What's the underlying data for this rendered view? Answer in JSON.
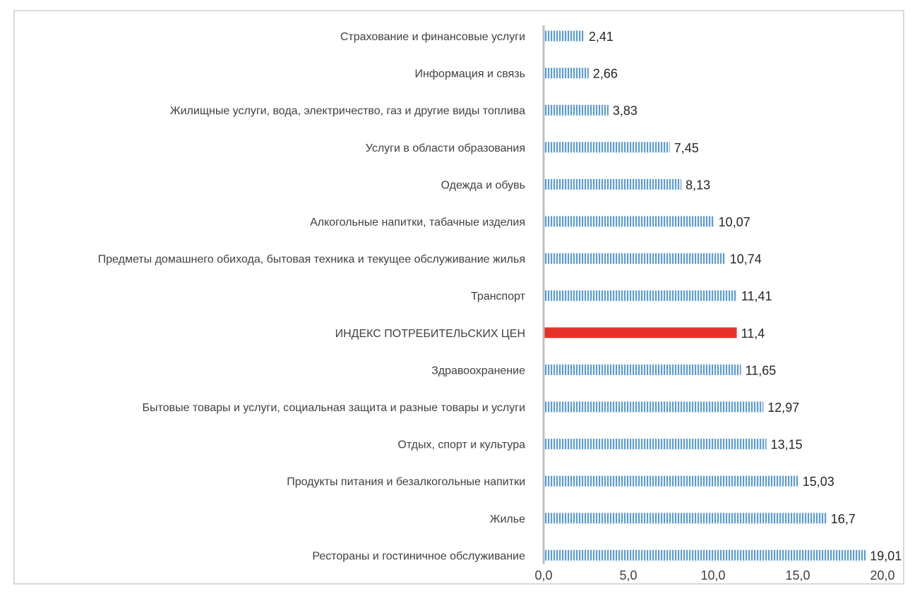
{
  "chart_data": {
    "type": "bar",
    "orientation": "horizontal",
    "categories": [
      "Страхование и финансовые услуги",
      "Информация и связь",
      "Жилищные услуги, вода, электричество, газ и другие виды топлива",
      "Услуги в области образования",
      "Одежда и обувь",
      "Алкогольные напитки, табачные изделия",
      "Предметы домашнего обихода, бытовая техника и текущее обслуживание жилья",
      "Транспорт",
      "ИНДЕКС ПОТРЕБИТЕЛЬСКИХ ЦЕН",
      "Здравоохранение",
      "Бытовые товары и услуги, социальная защита и разные товары и услуги",
      "Отдых, спорт и культура",
      "Продукты питания и безалкогольные напитки",
      "Жилье",
      "Рестораны и гостиничное обслуживание"
    ],
    "values": [
      2.41,
      2.66,
      3.83,
      7.45,
      8.13,
      10.07,
      10.74,
      11.41,
      11.4,
      11.65,
      12.97,
      13.15,
      15.03,
      16.7,
      19.01
    ],
    "value_labels": [
      "2,41",
      "2,66",
      "3,83",
      "7,45",
      "8,13",
      "10,07",
      "10,74",
      "11,41",
      "11,4",
      "11,65",
      "12,97",
      "13,15",
      "15,03",
      "16,7",
      "19,01"
    ],
    "highlight_index": 8,
    "xlim": [
      0,
      20
    ],
    "xticks": [
      0,
      5,
      10,
      15,
      20
    ],
    "xtick_labels": [
      "0,0",
      "5,0",
      "10,0",
      "15,0",
      "20,0"
    ],
    "grid": false,
    "legend": "none",
    "colors": {
      "bar_pattern": "#5b9bd5",
      "highlight": "#e8302a",
      "axis": "#bfbfbf",
      "frame": "#d9d9d9"
    }
  }
}
